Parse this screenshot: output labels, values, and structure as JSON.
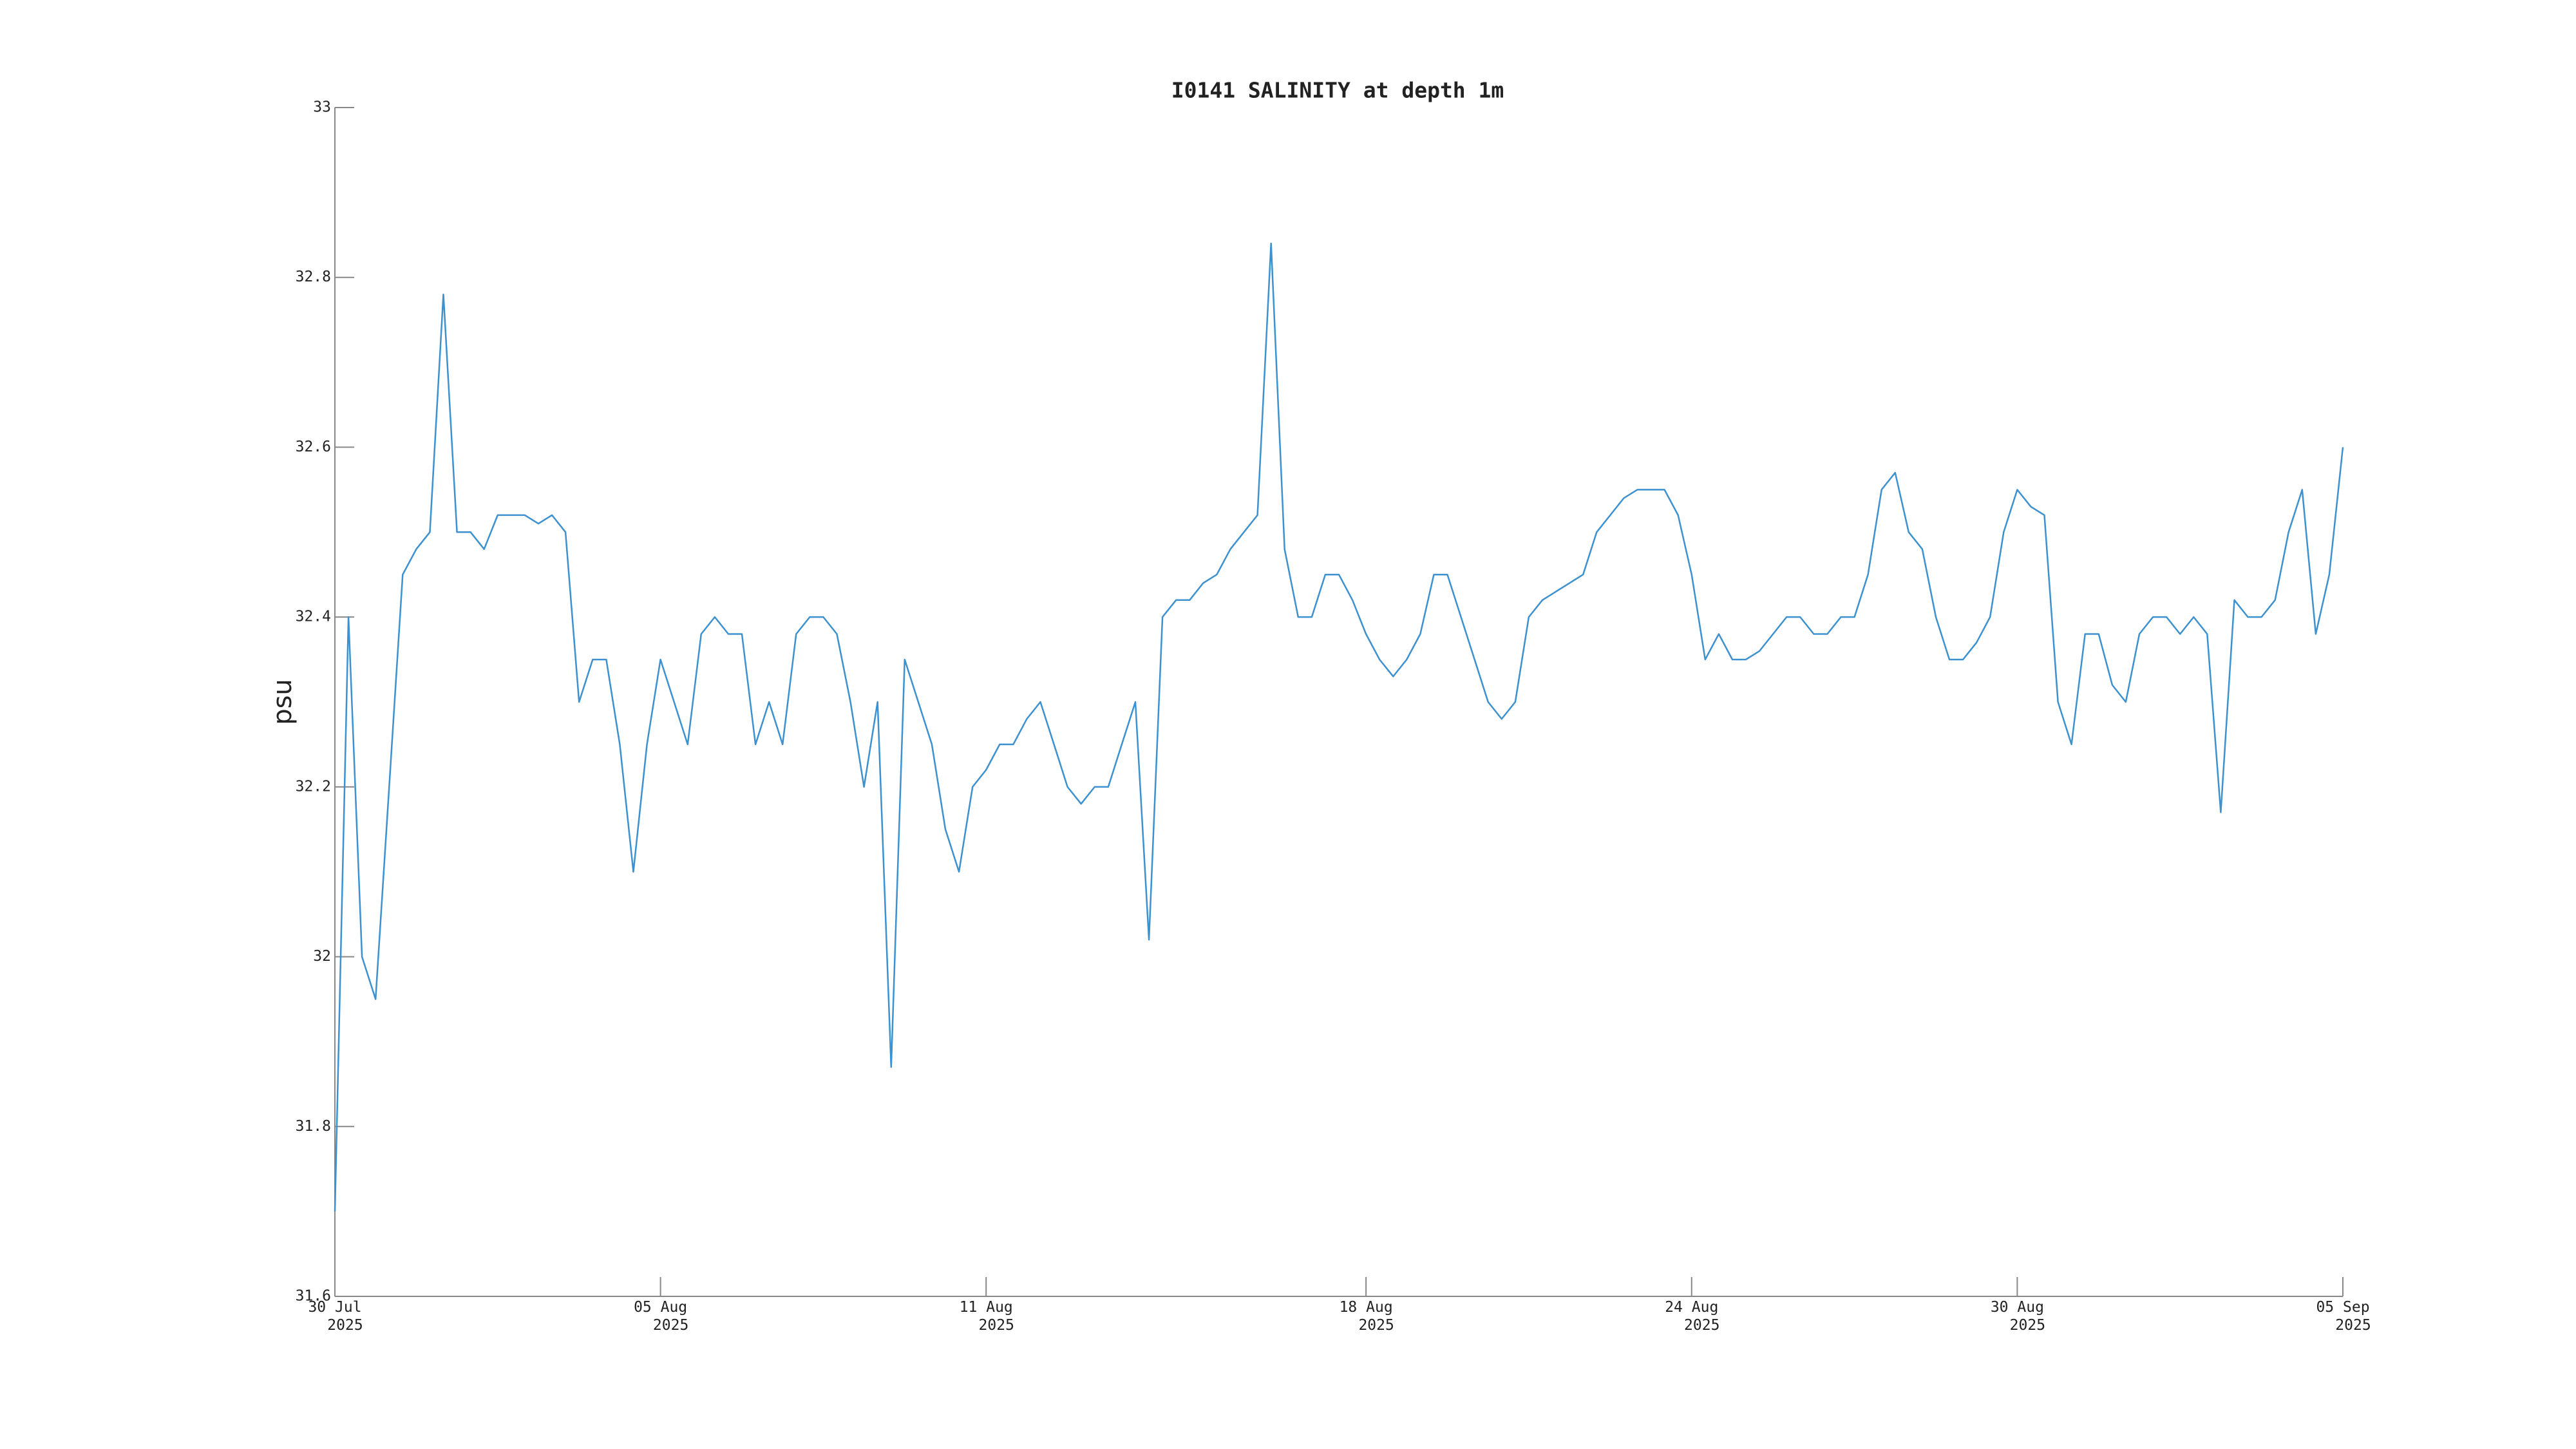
{
  "chart_data": {
    "type": "line",
    "title": "I0141 SALINITY at depth 1m",
    "ylabel": "psu",
    "color": "#3d91cf",
    "xlim": [
      "2025-07-30",
      "2025-09-05"
    ],
    "xticks": [
      {
        "value": "2025-07-30",
        "label": [
          "30 Jul",
          "2025"
        ]
      },
      {
        "value": "2025-08-05",
        "label": [
          "05 Aug",
          "2025"
        ]
      },
      {
        "value": "2025-08-11",
        "label": [
          "11 Aug",
          "2025"
        ]
      },
      {
        "value": "2025-08-18",
        "label": [
          "18 Aug",
          "2025"
        ]
      },
      {
        "value": "2025-08-24",
        "label": [
          "24 Aug",
          "2025"
        ]
      },
      {
        "value": "2025-08-30",
        "label": [
          "30 Aug",
          "2025"
        ]
      },
      {
        "value": "2025-09-05",
        "label": [
          "05 Sep",
          "2025"
        ]
      }
    ],
    "ylim": [
      31.6,
      33
    ],
    "yticks": [
      31.6,
      31.8,
      32,
      32.2,
      32.4,
      32.6,
      32.8,
      33
    ],
    "x": [
      "2025-07-30T00:00",
      "2025-07-30T06:00",
      "2025-07-30T12:00",
      "2025-07-30T18:00",
      "2025-07-31T00:00",
      "2025-07-31T06:00",
      "2025-07-31T12:00",
      "2025-07-31T18:00",
      "2025-08-01T00:00",
      "2025-08-01T06:00",
      "2025-08-01T12:00",
      "2025-08-01T18:00",
      "2025-08-02T00:00",
      "2025-08-02T06:00",
      "2025-08-02T12:00",
      "2025-08-02T18:00",
      "2025-08-03T00:00",
      "2025-08-03T06:00",
      "2025-08-03T12:00",
      "2025-08-03T18:00",
      "2025-08-04T00:00",
      "2025-08-04T06:00",
      "2025-08-04T12:00",
      "2025-08-04T18:00",
      "2025-08-05T00:00",
      "2025-08-05T06:00",
      "2025-08-05T12:00",
      "2025-08-05T18:00",
      "2025-08-06T00:00",
      "2025-08-06T06:00",
      "2025-08-06T12:00",
      "2025-08-06T18:00",
      "2025-08-07T00:00",
      "2025-08-07T06:00",
      "2025-08-07T12:00",
      "2025-08-07T18:00",
      "2025-08-08T00:00",
      "2025-08-08T06:00",
      "2025-08-08T12:00",
      "2025-08-08T18:00",
      "2025-08-09T00:00",
      "2025-08-09T06:00",
      "2025-08-09T12:00",
      "2025-08-09T18:00",
      "2025-08-10T00:00",
      "2025-08-10T06:00",
      "2025-08-10T12:00",
      "2025-08-10T18:00",
      "2025-08-11T00:00",
      "2025-08-11T06:00",
      "2025-08-11T12:00",
      "2025-08-11T18:00",
      "2025-08-12T00:00",
      "2025-08-12T06:00",
      "2025-08-12T12:00",
      "2025-08-12T18:00",
      "2025-08-13T00:00",
      "2025-08-13T06:00",
      "2025-08-13T12:00",
      "2025-08-13T18:00",
      "2025-08-14T00:00",
      "2025-08-14T06:00",
      "2025-08-14T12:00",
      "2025-08-14T18:00",
      "2025-08-15T00:00",
      "2025-08-15T06:00",
      "2025-08-15T12:00",
      "2025-08-15T18:00",
      "2025-08-16T00:00",
      "2025-08-16T06:00",
      "2025-08-16T12:00",
      "2025-08-16T18:00",
      "2025-08-17T00:00",
      "2025-08-17T06:00",
      "2025-08-17T12:00",
      "2025-08-17T18:00",
      "2025-08-18T00:00",
      "2025-08-18T06:00",
      "2025-08-18T12:00",
      "2025-08-18T18:00",
      "2025-08-19T00:00",
      "2025-08-19T06:00",
      "2025-08-19T12:00",
      "2025-08-19T18:00",
      "2025-08-20T00:00",
      "2025-08-20T06:00",
      "2025-08-20T12:00",
      "2025-08-20T18:00",
      "2025-08-21T00:00",
      "2025-08-21T06:00",
      "2025-08-21T12:00",
      "2025-08-21T18:00",
      "2025-08-22T00:00",
      "2025-08-22T06:00",
      "2025-08-22T12:00",
      "2025-08-22T18:00",
      "2025-08-23T00:00",
      "2025-08-23T06:00",
      "2025-08-23T12:00",
      "2025-08-23T18:00",
      "2025-08-24T00:00",
      "2025-08-24T06:00",
      "2025-08-24T12:00",
      "2025-08-24T18:00",
      "2025-08-25T00:00",
      "2025-08-25T06:00",
      "2025-08-25T12:00",
      "2025-08-25T18:00",
      "2025-08-26T00:00",
      "2025-08-26T06:00",
      "2025-08-26T12:00",
      "2025-08-26T18:00",
      "2025-08-27T00:00",
      "2025-08-27T06:00",
      "2025-08-27T12:00",
      "2025-08-27T18:00",
      "2025-08-28T00:00",
      "2025-08-28T06:00",
      "2025-08-28T12:00",
      "2025-08-28T18:00",
      "2025-08-29T00:00",
      "2025-08-29T06:00",
      "2025-08-29T12:00",
      "2025-08-29T18:00",
      "2025-08-30T00:00",
      "2025-08-30T06:00",
      "2025-08-30T12:00",
      "2025-08-30T18:00",
      "2025-08-31T00:00",
      "2025-08-31T06:00",
      "2025-08-31T12:00",
      "2025-08-31T18:00",
      "2025-09-01T00:00",
      "2025-09-01T06:00",
      "2025-09-01T12:00",
      "2025-09-01T18:00",
      "2025-09-02T00:00",
      "2025-09-02T06:00",
      "2025-09-02T12:00",
      "2025-09-02T18:00",
      "2025-09-03T00:00",
      "2025-09-03T06:00",
      "2025-09-03T12:00",
      "2025-09-03T18:00",
      "2025-09-04T00:00",
      "2025-09-04T06:00",
      "2025-09-04T12:00",
      "2025-09-04T18:00",
      "2025-09-05T00:00"
    ],
    "values": [
      31.7,
      32.4,
      32.0,
      31.95,
      32.2,
      32.45,
      32.48,
      32.5,
      32.78,
      32.5,
      32.5,
      32.48,
      32.52,
      32.52,
      32.52,
      32.51,
      32.52,
      32.5,
      32.3,
      32.35,
      32.35,
      32.25,
      32.1,
      32.25,
      32.35,
      32.3,
      32.25,
      32.38,
      32.4,
      32.38,
      32.38,
      32.25,
      32.3,
      32.25,
      32.38,
      32.4,
      32.4,
      32.38,
      32.3,
      32.2,
      32.3,
      31.87,
      32.35,
      32.3,
      32.25,
      32.15,
      32.1,
      32.2,
      32.22,
      32.25,
      32.25,
      32.28,
      32.3,
      32.25,
      32.2,
      32.18,
      32.2,
      32.2,
      32.25,
      32.3,
      32.02,
      32.4,
      32.42,
      32.42,
      32.44,
      32.45,
      32.48,
      32.5,
      32.52,
      32.84,
      32.48,
      32.4,
      32.4,
      32.45,
      32.45,
      32.42,
      32.38,
      32.35,
      32.33,
      32.35,
      32.38,
      32.45,
      32.45,
      32.4,
      32.35,
      32.3,
      32.28,
      32.3,
      32.4,
      32.42,
      32.43,
      32.44,
      32.45,
      32.5,
      32.52,
      32.54,
      32.55,
      32.55,
      32.55,
      32.52,
      32.45,
      32.35,
      32.38,
      32.35,
      32.35,
      32.36,
      32.38,
      32.4,
      32.4,
      32.38,
      32.38,
      32.4,
      32.4,
      32.45,
      32.55,
      32.57,
      32.5,
      32.48,
      32.4,
      32.35,
      32.35,
      32.37,
      32.4,
      32.5,
      32.55,
      32.53,
      32.52,
      32.3,
      32.25,
      32.38,
      32.38,
      32.32,
      32.3,
      32.38,
      32.4,
      32.4,
      32.38,
      32.4,
      32.38,
      32.17,
      32.42,
      32.4,
      32.4,
      32.42,
      32.5,
      32.55,
      32.38,
      32.45,
      32.6
    ]
  }
}
